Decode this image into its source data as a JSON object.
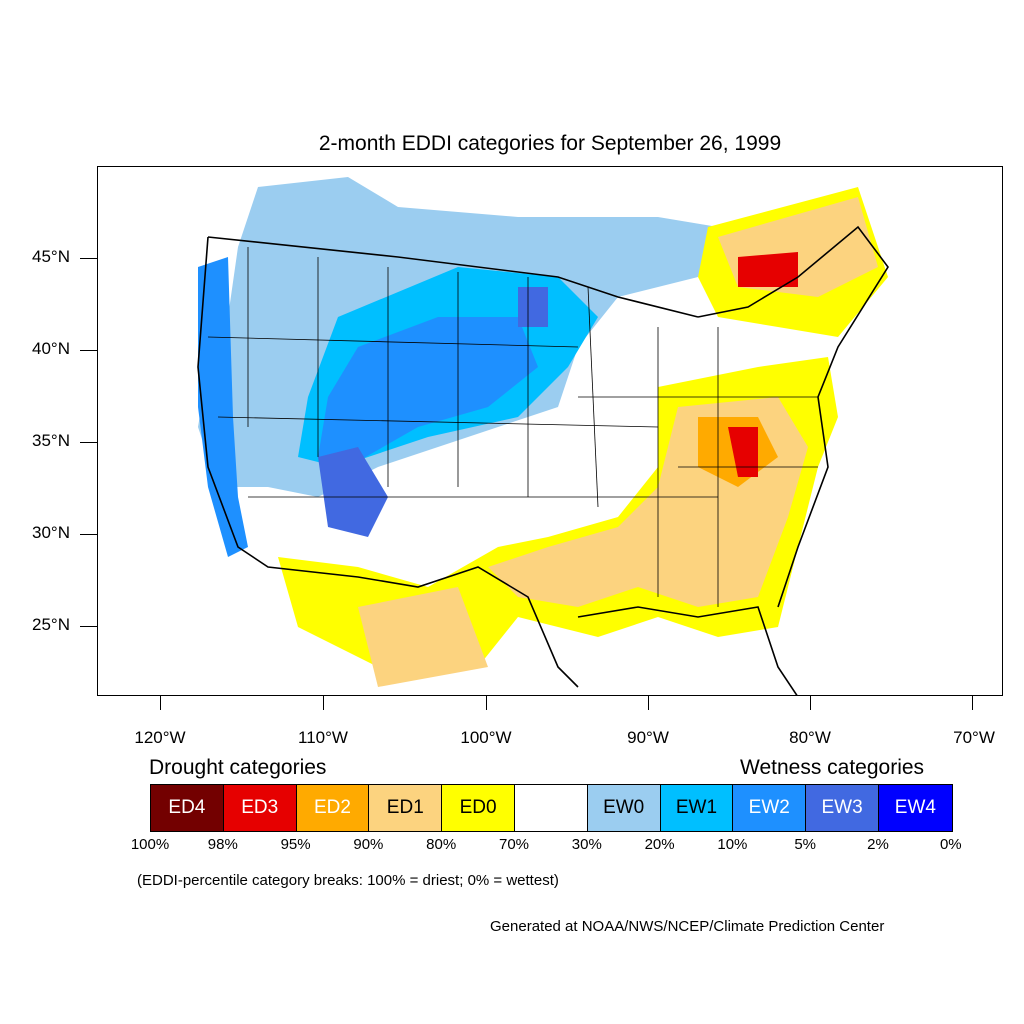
{
  "title": "2-month EDDI categories for September 26, 1999",
  "lat_labels": [
    "45°N",
    "40°N",
    "35°N",
    "30°N",
    "25°N"
  ],
  "lon_labels": [
    "120°W",
    "110°W",
    "100°W",
    "90°W",
    "80°W",
    "70°W"
  ],
  "legend": {
    "drought_title": "Drought categories",
    "wetness_title": "Wetness categories",
    "categories": [
      {
        "label": "ED4",
        "color": "#730000",
        "text_color": "#ffffff"
      },
      {
        "label": "ED3",
        "color": "#e60000",
        "text_color": "#ffffff"
      },
      {
        "label": "ED2",
        "color": "#ffaa00",
        "text_color": "#ffffff"
      },
      {
        "label": "ED1",
        "color": "#fcd37f",
        "text_color": "#000000"
      },
      {
        "label": "ED0",
        "color": "#ffff00",
        "text_color": "#000000"
      },
      {
        "label": "",
        "color": "#ffffff",
        "text_color": "#000000"
      },
      {
        "label": "EW0",
        "color": "#9bcdf0",
        "text_color": "#000000"
      },
      {
        "label": "EW1",
        "color": "#00bfff",
        "text_color": "#000000"
      },
      {
        "label": "EW2",
        "color": "#1e90ff",
        "text_color": "#ffffff"
      },
      {
        "label": "EW3",
        "color": "#4169e1",
        "text_color": "#ffffff"
      },
      {
        "label": "EW4",
        "color": "#0000ff",
        "text_color": "#ffffff"
      }
    ],
    "percentiles": [
      "100%",
      "98%",
      "95%",
      "90%",
      "80%",
      "70%",
      "30%",
      "20%",
      "10%",
      "5%",
      "2%",
      "0%"
    ]
  },
  "note": "(EDDI-percentile category breaks: 100% = driest; 0% = wettest)",
  "credit": "Generated at NOAA/NWS/NCEP/Climate Prediction Center"
}
